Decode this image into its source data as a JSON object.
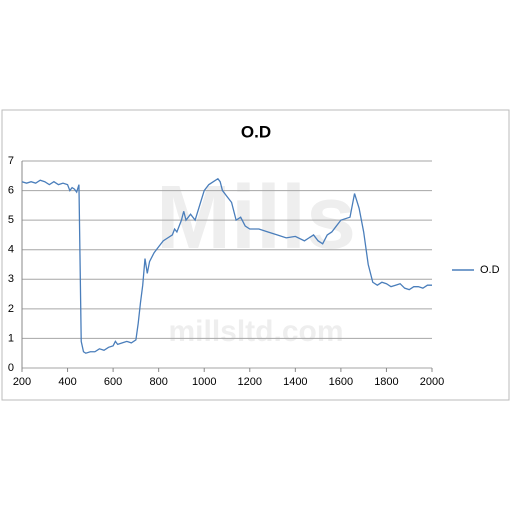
{
  "chart_data": {
    "type": "line",
    "title": "O.D",
    "watermark": [
      "Mills",
      "millsltd.com"
    ],
    "x": [
      200,
      220,
      240,
      260,
      280,
      300,
      320,
      340,
      360,
      380,
      400,
      410,
      420,
      430,
      440,
      450,
      460,
      470,
      480,
      500,
      520,
      540,
      560,
      580,
      600,
      610,
      620,
      640,
      660,
      680,
      700,
      710,
      720,
      730,
      740,
      750,
      760,
      780,
      800,
      820,
      840,
      860,
      870,
      880,
      900,
      910,
      920,
      940,
      960,
      980,
      1000,
      1020,
      1040,
      1060,
      1070,
      1080,
      1100,
      1120,
      1140,
      1160,
      1180,
      1200,
      1240,
      1280,
      1320,
      1360,
      1400,
      1440,
      1460,
      1480,
      1500,
      1520,
      1540,
      1560,
      1580,
      1600,
      1640,
      1660,
      1680,
      1700,
      1720,
      1740,
      1760,
      1780,
      1800,
      1820,
      1840,
      1860,
      1880,
      1900,
      1920,
      1940,
      1960,
      1980,
      2000
    ],
    "series": [
      {
        "name": "O.D",
        "color": "#4a7ebb",
        "values": [
          6.3,
          6.25,
          6.3,
          6.25,
          6.35,
          6.3,
          6.2,
          6.3,
          6.2,
          6.25,
          6.2,
          6.0,
          6.1,
          6.05,
          5.95,
          6.2,
          0.9,
          0.55,
          0.5,
          0.55,
          0.55,
          0.65,
          0.6,
          0.7,
          0.75,
          0.9,
          0.8,
          0.85,
          0.9,
          0.85,
          0.95,
          1.5,
          2.2,
          2.8,
          3.7,
          3.2,
          3.6,
          3.9,
          4.1,
          4.3,
          4.4,
          4.5,
          4.7,
          4.6,
          5.0,
          5.3,
          5.0,
          5.2,
          5.0,
          5.5,
          6.0,
          6.2,
          6.3,
          6.4,
          6.3,
          6.0,
          5.8,
          5.6,
          5.0,
          5.1,
          4.8,
          4.7,
          4.7,
          4.6,
          4.5,
          4.4,
          4.45,
          4.3,
          4.4,
          4.5,
          4.3,
          4.2,
          4.5,
          4.6,
          4.8,
          5.0,
          5.1,
          5.9,
          5.4,
          4.6,
          3.5,
          2.9,
          2.8,
          2.9,
          2.85,
          2.75,
          2.8,
          2.85,
          2.7,
          2.65,
          2.75,
          2.75,
          2.7,
          2.8,
          2.8
        ]
      }
    ],
    "xlim": [
      200,
      2000
    ],
    "xticks": [
      200,
      400,
      600,
      800,
      1000,
      1200,
      1400,
      1600,
      1800,
      2000
    ],
    "ylim": [
      0,
      7
    ],
    "yticks": [
      0,
      1,
      2,
      3,
      4,
      5,
      6,
      7
    ],
    "grid": true,
    "legend": "right"
  }
}
